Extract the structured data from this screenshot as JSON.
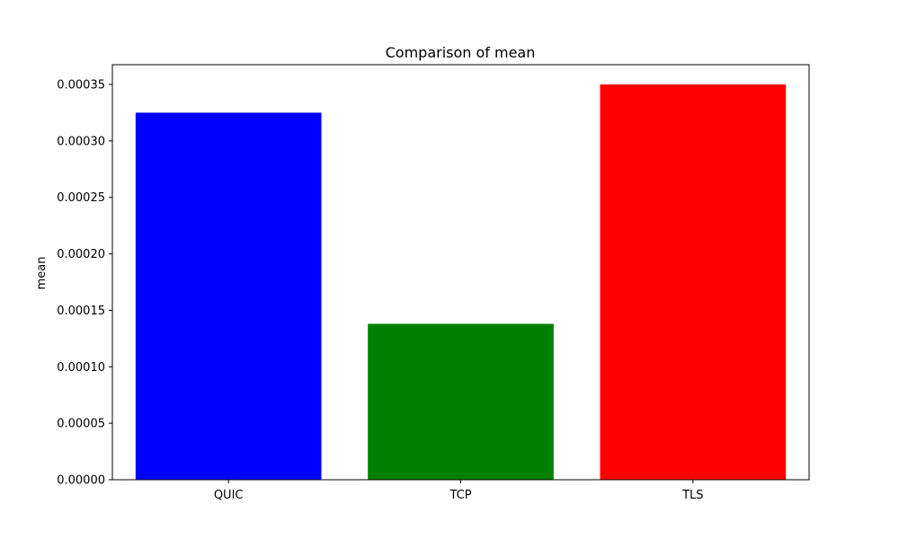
{
  "chart_data": {
    "type": "bar",
    "title": "Comparison of mean",
    "xlabel": "",
    "ylabel": "mean",
    "categories": [
      "QUIC",
      "TCP",
      "TLS"
    ],
    "values": [
      0.000325,
      0.000138,
      0.00035
    ],
    "bar_colors": [
      "#0000ff",
      "#008000",
      "#ff0000"
    ],
    "ylim": [
      0,
      0.0003675
    ],
    "yticks": [
      0,
      5e-05,
      0.0001,
      0.00015,
      0.0002,
      0.00025,
      0.0003,
      0.00035
    ],
    "ytick_labels": [
      "0.00000",
      "0.00005",
      "0.00010",
      "0.00015",
      "0.00020",
      "0.00025",
      "0.00030",
      "0.00035"
    ],
    "grid": false,
    "legend": "none"
  }
}
